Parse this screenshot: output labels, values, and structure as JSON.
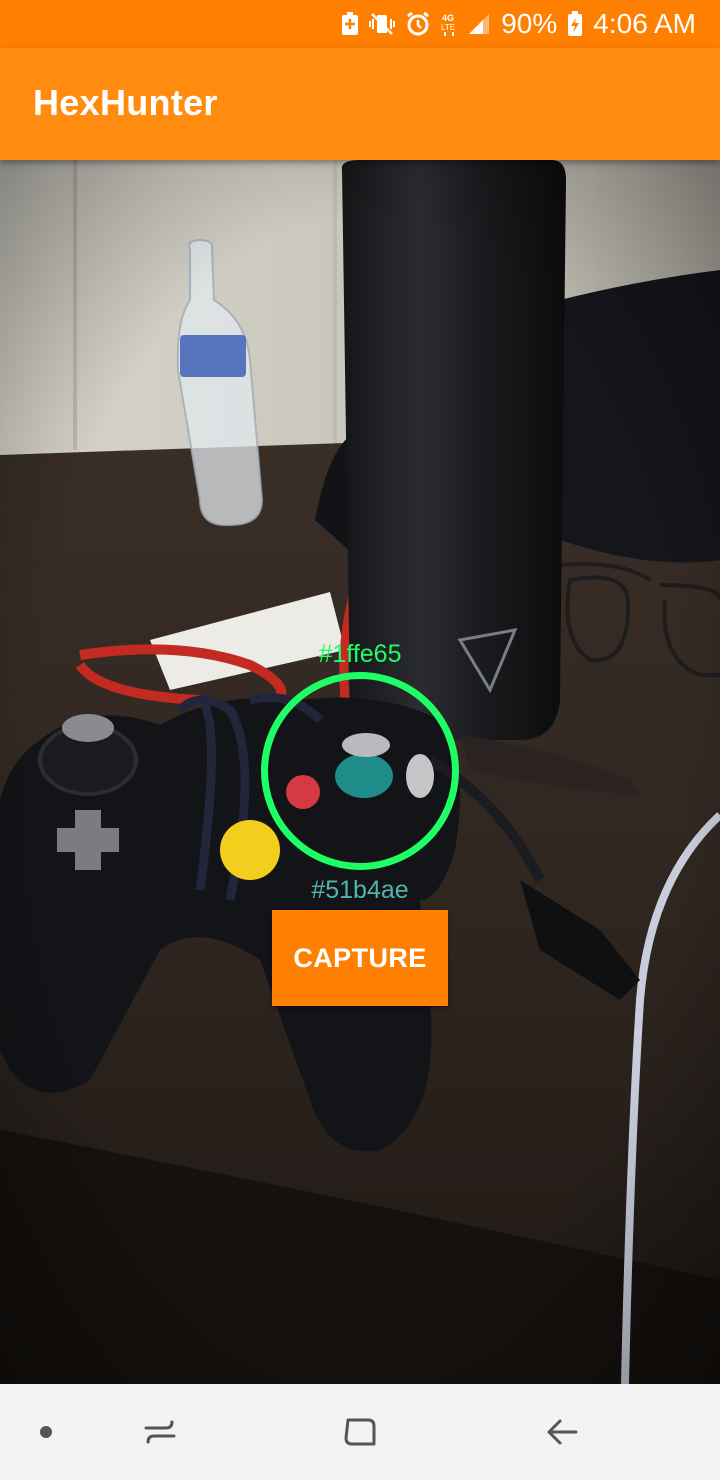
{
  "status_bar": {
    "battery_percent": "90%",
    "time": "4:06 AM",
    "icons": [
      "battery-saver-icon",
      "vibrate-mute-icon",
      "alarm-icon",
      "lte-icon",
      "signal-icon",
      "charging-battery-icon"
    ]
  },
  "app_bar": {
    "title": "HexHunter"
  },
  "overlay": {
    "target_hex": "#1ffe65",
    "sampled_hex": "#51b4ae",
    "ring_color": "#1ffe65",
    "sampled_color": "#51b4ae"
  },
  "capture_button": {
    "label": "CAPTURE"
  },
  "colors": {
    "accent": "#ff8c0f",
    "status_bar": "#ff7f00"
  },
  "nav_bar": {
    "icons": [
      "dot-icon",
      "recent-apps-icon",
      "home-icon",
      "back-icon"
    ]
  }
}
